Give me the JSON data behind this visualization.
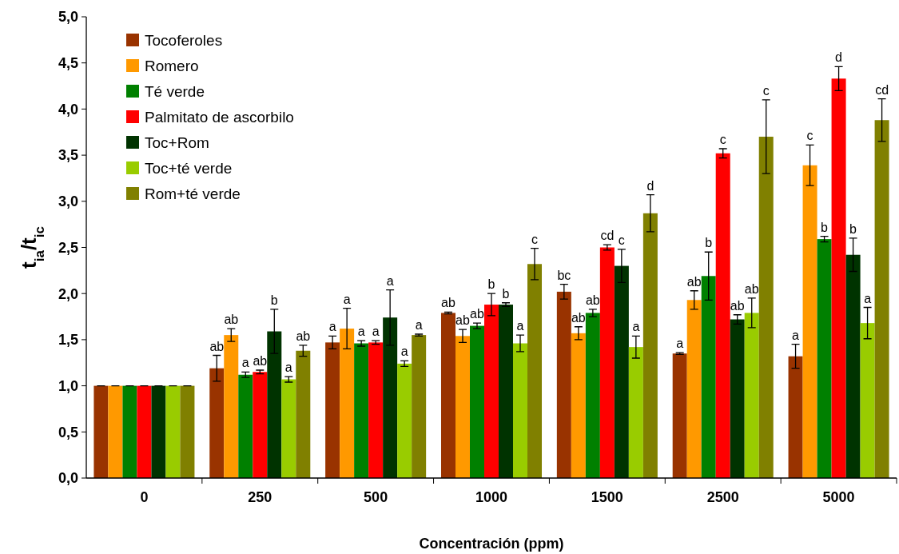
{
  "chart_data": {
    "type": "bar",
    "xlabel": "Concentración (ppm)",
    "ylabel": "t$_{ia}$/t$_{ic}$",
    "categories": [
      "0",
      "250",
      "500",
      "1000",
      "1500",
      "2500",
      "5000"
    ],
    "ylim": [
      0,
      5
    ],
    "yticks": [
      {
        "value": 0,
        "label": "0,0"
      },
      {
        "value": 0.5,
        "label": "0,5"
      },
      {
        "value": 1,
        "label": "1,0"
      },
      {
        "value": 1.5,
        "label": "1,5"
      },
      {
        "value": 2,
        "label": "2,0"
      },
      {
        "value": 2.5,
        "label": "2,5"
      },
      {
        "value": 3,
        "label": "3,0"
      },
      {
        "value": 3.5,
        "label": "3,5"
      },
      {
        "value": 4,
        "label": "4,0"
      },
      {
        "value": 4.5,
        "label": "4,5"
      },
      {
        "value": 5,
        "label": "5,0"
      }
    ],
    "legend": "top left",
    "series": [
      {
        "name": "Tocoferoles",
        "color": "#993300",
        "values": [
          1,
          1.19,
          1.47,
          1.79,
          2.02,
          1.35,
          1.32
        ],
        "errors": [
          0,
          0.14,
          0.07,
          0.01,
          0.08,
          0.01,
          0.13
        ],
        "value_labels": [
          null,
          "ab",
          "a",
          "ab",
          "bc",
          "a",
          "a"
        ]
      },
      {
        "name": "Romero",
        "color": "#ff9900",
        "values": [
          1,
          1.55,
          1.62,
          1.54,
          1.57,
          1.93,
          3.39
        ],
        "errors": [
          0,
          0.07,
          0.22,
          0.07,
          0.07,
          0.1,
          0.22
        ],
        "value_labels": [
          null,
          "ab",
          "a",
          "ab",
          "ab",
          "ab",
          "c"
        ]
      },
      {
        "name": "Té verde",
        "color": "#008000",
        "values": [
          1,
          1.12,
          1.46,
          1.65,
          1.79,
          2.19,
          2.59
        ],
        "errors": [
          0,
          0.03,
          0.03,
          0.03,
          0.04,
          0.26,
          0.03
        ],
        "value_labels": [
          null,
          "a",
          "a",
          "ab",
          "ab",
          "b",
          "b"
        ]
      },
      {
        "name": "Palmitato de ascorbilo",
        "color": "#ff0000",
        "values": [
          1,
          1.15,
          1.47,
          1.88,
          2.5,
          3.52,
          4.33
        ],
        "errors": [
          0,
          0.02,
          0.02,
          0.12,
          0.03,
          0.05,
          0.13
        ],
        "value_labels": [
          null,
          "ab",
          "a",
          "b",
          "cd",
          "c",
          "d"
        ]
      },
      {
        "name": "Toc+Rom",
        "color": "#003300",
        "values": [
          1,
          1.59,
          1.74,
          1.88,
          2.3,
          1.72,
          2.42
        ],
        "errors": [
          0,
          0.24,
          0.3,
          0.02,
          0.18,
          0.05,
          0.18
        ],
        "value_labels": [
          null,
          "b",
          "a",
          "b",
          "c",
          "ab",
          "b"
        ]
      },
      {
        "name": "Toc+té verde",
        "color": "#99cc00",
        "values": [
          1,
          1.07,
          1.24,
          1.46,
          1.42,
          1.79,
          1.68
        ],
        "errors": [
          0,
          0.03,
          0.03,
          0.09,
          0.12,
          0.16,
          0.17
        ],
        "value_labels": [
          null,
          "a",
          "a",
          "a",
          "a",
          "ab",
          "a"
        ]
      },
      {
        "name": "Rom+té verde",
        "color": "#808000",
        "values": [
          1,
          1.38,
          1.55,
          2.32,
          2.87,
          3.7,
          3.88
        ],
        "errors": [
          0,
          0.06,
          0.01,
          0.17,
          0.2,
          0.4,
          0.23
        ],
        "value_labels": [
          null,
          "ab",
          "a",
          "c",
          "d",
          "c",
          "cd"
        ]
      }
    ]
  }
}
